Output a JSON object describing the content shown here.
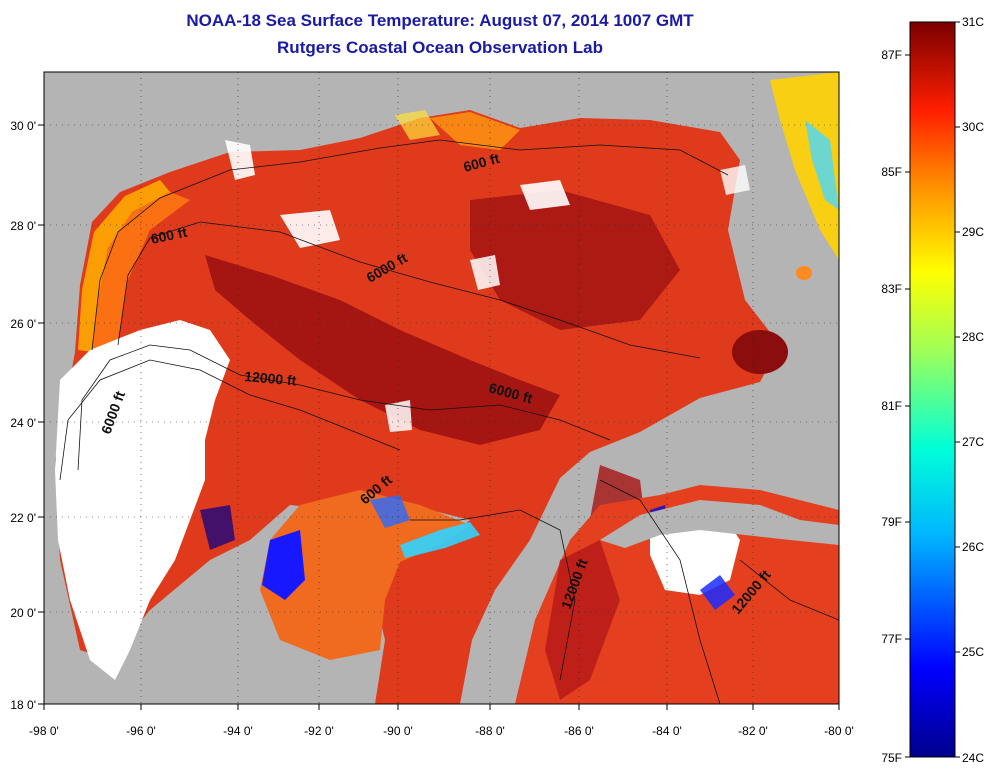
{
  "title": "NOAA-18 Sea Surface Temperature:  August 07, 2014 1007 GMT",
  "subtitle": "Rutgers Coastal Ocean Observation Lab",
  "map": {
    "lon_range": [
      -98,
      -80
    ],
    "lat_range": [
      18,
      31
    ],
    "x_ticks": [
      "-98 0'",
      "-96 0'",
      "-94 0'",
      "-92 0'",
      "-90 0'",
      "-88 0'",
      "-86 0'",
      "-84 0'",
      "-82 0'",
      "-80 0'"
    ],
    "y_ticks": [
      "18 0'",
      "20 0'",
      "22 0'",
      "24 0'",
      "26 0'",
      "28 0'",
      "30 0'"
    ],
    "contour_labels": [
      "600 ft",
      "600 ft",
      "6000 ft",
      "12000 ft",
      "6000 ft",
      "6000 ft",
      "600 ft",
      "12000 ft",
      "12000 ft"
    ],
    "colors": {
      "land": "#b4b4b4",
      "cloud": "#ffffff",
      "hot": "#8c0d0d",
      "warm": "#e6321a"
    }
  },
  "colorbar": {
    "celsius": [
      "31C",
      "30C",
      "29C",
      "28C",
      "27C",
      "26C",
      "25C",
      "24C"
    ],
    "fahrenheit": [
      "87F",
      "85F",
      "83F",
      "81F",
      "79F",
      "77F",
      "75F"
    ],
    "range_c": [
      24,
      31
    ]
  }
}
